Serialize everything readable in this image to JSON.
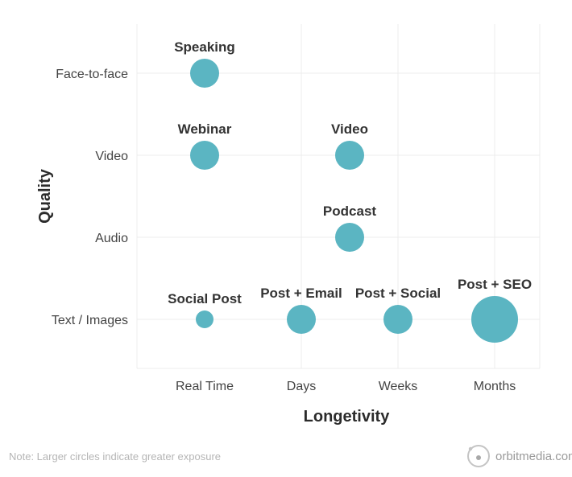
{
  "chart_data": {
    "type": "scatter",
    "title": "",
    "xlabel": "Longetivity",
    "ylabel": "Quality",
    "x_categories": [
      "Real Time",
      "Days",
      "Weeks",
      "Months"
    ],
    "y_categories": [
      "Text / Images",
      "Audio",
      "Video",
      "Face-to-face"
    ],
    "grid": true,
    "points": [
      {
        "label": "Speaking",
        "x": 0,
        "y": 3,
        "size": 2
      },
      {
        "label": "Webinar",
        "x": 0,
        "y": 2,
        "size": 2
      },
      {
        "label": "Video",
        "x": 1.5,
        "y": 2,
        "size": 2
      },
      {
        "label": "Podcast",
        "x": 1.5,
        "y": 1,
        "size": 2
      },
      {
        "label": "Social Post",
        "x": 0,
        "y": 0,
        "size": 1
      },
      {
        "label": "Post + Email",
        "x": 1,
        "y": 0,
        "size": 2
      },
      {
        "label": "Post + Social",
        "x": 2,
        "y": 0,
        "size": 2
      },
      {
        "label": "Post + SEO",
        "x": 3,
        "y": 0,
        "size": 4
      }
    ],
    "bubble_color": "#5bb5c2",
    "note": "Note: Larger circles indicate greater exposure"
  },
  "brand": {
    "name": "orbitmedia.com"
  }
}
